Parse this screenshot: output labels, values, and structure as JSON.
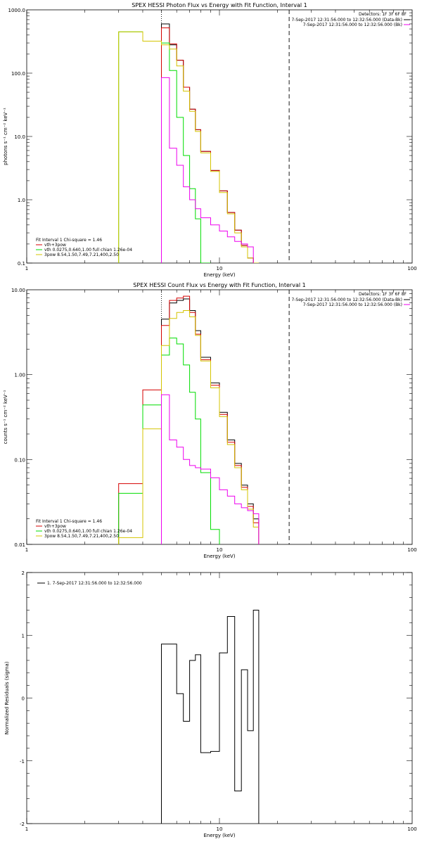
{
  "chart_data": [
    {
      "type": "line",
      "title": "SPEX HESSI Photon Flux vs Energy with Fit Function, Interval 1",
      "xlabel": "Energy (keV)",
      "ylabel": "photons s⁻¹ cm⁻² keV⁻¹",
      "xscale": "log",
      "yscale": "log",
      "xlim": [
        1,
        100
      ],
      "ylim": [
        0.1,
        1000
      ],
      "xticks": [
        "1",
        "10",
        "100"
      ],
      "yticks": [
        "0.1",
        "1.0",
        "10.0",
        "100.0",
        "1000.0"
      ],
      "info": {
        "detectors": "Detectors: 1F 3F 6F 8F",
        "line1": "7-Sep-2017 12:31:56.000 to 12:32:56.000 (Data-Bk)",
        "line2": "7-Sep-2017 12:31:56.000 to 12:32:56.000 (Bk)"
      },
      "legend_title": "Fit Interval 1   Chi-square = 1.46",
      "legend": [
        {
          "label": "vth+3pow",
          "color": "#d40000"
        },
        {
          "label": "vth 0.0275,0.640,1.00  full chian 1.26e-04",
          "color": "#00dd00"
        },
        {
          "label": "3pow 8.54,1.50,7.49,7.21,400,2.50",
          "color": "#d4c400"
        }
      ],
      "vlines": [
        {
          "x": 5.0,
          "style": "dotted",
          "color": "#000000"
        },
        {
          "x": 23.0,
          "style": "dashed",
          "color": "#000000"
        }
      ],
      "edges": [
        3,
        4,
        5,
        5.5,
        6,
        6.5,
        7,
        7.5,
        8,
        9,
        10,
        11,
        12,
        13,
        14,
        15,
        16,
        17,
        18,
        20,
        23
      ],
      "series": [
        {
          "name": "Data-Bk",
          "color": "#000000",
          "values": [
            null,
            null,
            600,
            280,
            160,
            60,
            27,
            12.8,
            5.8,
            2.9,
            1.38,
            0.63,
            0.33,
            0.19,
            0.12,
            0.1
          ]
        },
        {
          "name": "vth+3pow",
          "color": "#d40000",
          "values": [
            null,
            null,
            520,
            290,
            160,
            60,
            27,
            12.8,
            5.8,
            2.9,
            1.38,
            0.63,
            0.33,
            0.19,
            0.12,
            0.1
          ]
        },
        {
          "name": "vth",
          "color": "#00dd00",
          "values": [
            450,
            320,
            300,
            110,
            20,
            5,
            1.5,
            0.5,
            0.1
          ]
        },
        {
          "name": "3pow",
          "color": "#d4c400",
          "values": [
            450,
            320,
            280,
            240,
            130,
            52,
            25,
            12,
            5.5,
            2.8,
            1.3,
            0.6,
            0.3,
            0.18,
            0.12,
            0.1
          ]
        },
        {
          "name": "Bk",
          "color": "#ee00ee",
          "values": [
            null,
            null,
            85,
            6.5,
            3.5,
            1.6,
            1.0,
            0.72,
            0.52,
            0.4,
            0.32,
            0.26,
            0.22,
            0.2,
            0.18
          ]
        }
      ]
    },
    {
      "type": "line",
      "title": "SPEX HESSI Count Flux vs Energy with Fit Function, Interval 1",
      "xlabel": "Energy (keV)",
      "ylabel": "counts s⁻¹ cm⁻² keV⁻¹",
      "xscale": "log",
      "yscale": "log",
      "xlim": [
        1,
        100
      ],
      "ylim": [
        0.01,
        10
      ],
      "xticks": [
        "1",
        "10",
        "100"
      ],
      "yticks": [
        "0.01",
        "0.10",
        "1.00",
        "10.00"
      ],
      "info": {
        "detectors": "Detectors: 1F 3F 6F 8F",
        "line1": "7-Sep-2017 12:31:56.000 to 12:32:56.000 (Data-Bk)",
        "line2": "7-Sep-2017 12:31:56.000 to 12:32:56.000 (Bk)"
      },
      "legend_title": "Fit Interval 1   Chi-square = 1.46",
      "legend": [
        {
          "label": "vth+3pow",
          "color": "#d40000"
        },
        {
          "label": "vth 0.0275,0.640,1.00  full chian 1.26e-04",
          "color": "#00dd00"
        },
        {
          "label": "3pow 8.54,1.50,7.49,7.21,400,2.50",
          "color": "#d4c400"
        }
      ],
      "vlines": [
        {
          "x": 5.0,
          "style": "dotted",
          "color": "#000000"
        },
        {
          "x": 23.0,
          "style": "dashed",
          "color": "#000000"
        }
      ],
      "edges": [
        3,
        4,
        5,
        5.5,
        6,
        6.5,
        7,
        7.5,
        8,
        9,
        10,
        11,
        12,
        13,
        14,
        15,
        16,
        17,
        18,
        20,
        23
      ],
      "series": [
        {
          "name": "Data-Bk",
          "color": "#000000",
          "values": [
            null,
            null,
            4.5,
            7.0,
            7.5,
            7.8,
            5.7,
            3.3,
            1.6,
            0.8,
            0.36,
            0.17,
            0.09,
            0.05,
            0.03,
            0.02
          ]
        },
        {
          "name": "vth+3pow",
          "color": "#d40000",
          "values": [
            0.052,
            0.66,
            3.8,
            7.5,
            8.0,
            8.4,
            5.4,
            3.0,
            1.5,
            0.75,
            0.34,
            0.16,
            0.085,
            0.047,
            0.028,
            0.018
          ]
        },
        {
          "name": "vth",
          "color": "#00dd00",
          "values": [
            0.04,
            0.44,
            1.7,
            2.7,
            2.3,
            1.3,
            0.62,
            0.3,
            0.07,
            0.015
          ]
        },
        {
          "name": "3pow",
          "color": "#d4c400",
          "values": [
            0.012,
            0.23,
            2.2,
            4.6,
            5.4,
            5.7,
            4.8,
            2.9,
            1.45,
            0.7,
            0.32,
            0.15,
            0.08,
            0.044,
            0.026,
            0.016
          ]
        },
        {
          "name": "Bk",
          "color": "#ee00ee",
          "values": [
            null,
            null,
            0.58,
            0.17,
            0.14,
            0.1,
            0.085,
            0.08,
            0.077,
            0.061,
            0.044,
            0.037,
            0.03,
            0.027,
            0.025,
            0.023
          ]
        }
      ]
    },
    {
      "type": "line",
      "title": "",
      "xlabel": "Energy (keV)",
      "ylabel": "Normalized Residuals (sigma)",
      "xscale": "log",
      "yscale": "linear",
      "xlim": [
        1,
        100
      ],
      "ylim": [
        -2,
        2
      ],
      "xticks": [
        "1",
        "10",
        "100"
      ],
      "yticks": [
        "-2",
        "-1",
        "0",
        "1",
        "2"
      ],
      "legend": [
        {
          "label": "1.  7-Sep-2017 12:31:56.000 to 12:32:56.000",
          "color": "#000000"
        }
      ],
      "edges": [
        5,
        6,
        6.5,
        7,
        7.5,
        8,
        9,
        10,
        11,
        12,
        13,
        14,
        15,
        16,
        17,
        18,
        20,
        23
      ],
      "series": [
        {
          "name": "",
          "color": "#000000",
          "values": [
            0.86,
            0.07,
            -0.37,
            0.6,
            0.69,
            -0.87,
            -0.85,
            0.72,
            1.3,
            -1.48,
            0.45,
            -0.52,
            1.4
          ]
        }
      ]
    }
  ]
}
